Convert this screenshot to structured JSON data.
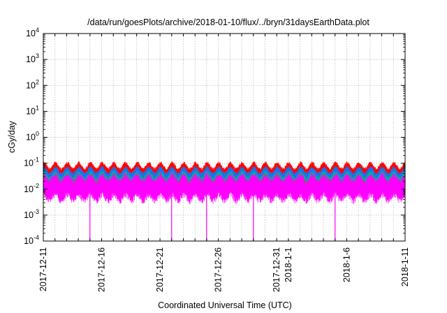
{
  "chart_data": {
    "type": "line",
    "title": "/data/run/goesPlots/archive/2018-01-10/flux/../bryn/31daysEarthData.plot",
    "xlabel": "Coordinated Universal Time (UTC)",
    "ylabel": "cGy/day",
    "y_scale": "log",
    "ylim": [
      0.0001,
      10000
    ],
    "xlim": [
      "2017-12-11",
      "2018-01-11"
    ],
    "grid": true,
    "legend": "none",
    "x_ticks": [
      "2017-12-11",
      "2017-12-16",
      "2017-12-21",
      "2017-12-26",
      "2017-12-31",
      "2018-1-1",
      "2018-1-6",
      "2018-1-11"
    ],
    "y_ticks": [
      {
        "base": "10",
        "exp": "-4",
        "value": 0.0001
      },
      {
        "base": "10",
        "exp": "-3",
        "value": 0.001
      },
      {
        "base": "10",
        "exp": "-2",
        "value": 0.01
      },
      {
        "base": "10",
        "exp": "-1",
        "value": 0.1
      },
      {
        "base": "10",
        "exp": "0",
        "value": 1
      },
      {
        "base": "10",
        "exp": "1",
        "value": 10
      },
      {
        "base": "10",
        "exp": "2",
        "value": 100
      },
      {
        "base": "10",
        "exp": "3",
        "value": 1000
      },
      {
        "base": "10",
        "exp": "4",
        "value": 10000
      }
    ],
    "series": [
      {
        "color": "#ff0000",
        "typical_range": [
          0.035,
          0.09
        ]
      },
      {
        "color": "#1e6fe8",
        "typical_range": [
          0.025,
          0.06
        ]
      },
      {
        "color": "#00aaaa",
        "typical_range": [
          0.018,
          0.04
        ]
      },
      {
        "color": "#22aa22",
        "typical_range": [
          0.012,
          0.03
        ]
      },
      {
        "color": "#ff00ff",
        "typical_range": [
          0.0035,
          0.035
        ],
        "dropouts": [
          "2017-12-15",
          "2017-12-22",
          "2017-12-25",
          "2017-12-29",
          "2018-01-05"
        ]
      }
    ]
  }
}
